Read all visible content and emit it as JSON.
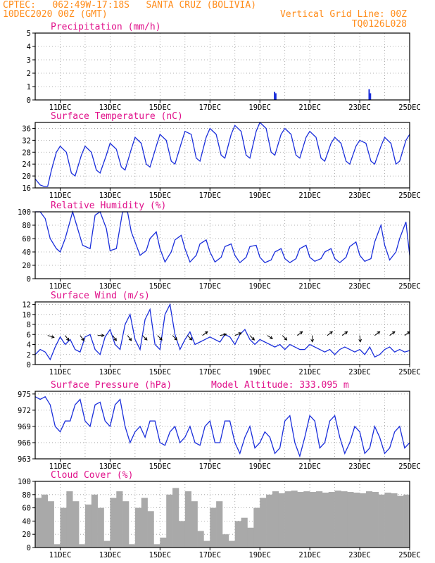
{
  "header": {
    "line1": "CPTEC:   062:49W-17:18S   SANTA CRUZ (BOLIVIA)",
    "line2": "10DEC2020 00Z (GMT)",
    "right1": "Vertical Grid Line: 00Z",
    "right2": "TQ0126L028"
  },
  "colors": {
    "header": "#ff8c1a",
    "title": "#e0108a",
    "series": "#1a2edb",
    "bar": "#1a2edb",
    "cloud": "#a9a9a9",
    "arrow": "#000000"
  },
  "chart_data": [
    {
      "type": "bar",
      "title": "Precipitation (mm/h)",
      "xlabel": "",
      "ylabel": "",
      "xlim": [
        0,
        15
      ],
      "ylim": [
        0,
        5
      ],
      "yticks": [
        0,
        1,
        2,
        3,
        4,
        5
      ],
      "xticks": [
        1,
        3,
        5,
        7,
        9,
        11,
        13,
        15
      ],
      "xticklabels": [
        "11DEC",
        "13DEC",
        "15DEC",
        "17DEC",
        "19DEC",
        "21DEC",
        "23DEC",
        "25DEC"
      ],
      "grid": true,
      "points": [
        [
          9.56,
          0.6
        ],
        [
          9.61,
          0.5
        ],
        [
          13.35,
          0.8
        ],
        [
          13.4,
          0.5
        ]
      ]
    },
    {
      "type": "line",
      "title": "Surface Temperature (nC)",
      "xlim": [
        0,
        15
      ],
      "ylim": [
        16,
        38
      ],
      "yticks": [
        16,
        20,
        24,
        28,
        32,
        36
      ],
      "xticks": [
        1,
        3,
        5,
        7,
        9,
        11,
        13,
        15
      ],
      "xticklabels": [
        "11DEC",
        "13DEC",
        "15DEC",
        "17DEC",
        "19DEC",
        "21DEC",
        "23DEC",
        "25DEC"
      ],
      "grid": true,
      "x": [
        0,
        0.1,
        0.2,
        0.35,
        0.5,
        0.65,
        0.85,
        1.0,
        1.25,
        1.45,
        1.6,
        1.85,
        2.0,
        2.25,
        2.45,
        2.6,
        2.85,
        3.0,
        3.25,
        3.45,
        3.6,
        3.85,
        4.0,
        4.25,
        4.45,
        4.6,
        4.85,
        5.0,
        5.25,
        5.45,
        5.6,
        5.85,
        6.0,
        6.25,
        6.45,
        6.6,
        6.85,
        7.0,
        7.25,
        7.45,
        7.6,
        7.85,
        8.0,
        8.25,
        8.45,
        8.6,
        8.85,
        9.0,
        9.25,
        9.45,
        9.6,
        9.85,
        10.0,
        10.25,
        10.45,
        10.6,
        10.85,
        11.0,
        11.25,
        11.45,
        11.6,
        11.85,
        12.0,
        12.25,
        12.45,
        12.6,
        12.85,
        13.0,
        13.25,
        13.45,
        13.6,
        13.85,
        14.0,
        14.25,
        14.45,
        14.6,
        14.85,
        15.0
      ],
      "y": [
        19,
        18,
        17,
        16.5,
        16.5,
        22,
        28,
        30,
        28,
        21,
        20,
        27,
        30,
        28,
        22,
        21,
        27,
        31,
        29,
        23,
        22,
        29,
        33,
        31,
        24,
        23,
        30,
        34,
        32,
        25,
        24,
        31,
        35,
        34,
        26,
        25,
        33,
        36,
        34,
        27,
        26,
        34,
        37,
        35,
        27,
        26,
        35,
        38,
        36,
        28,
        27,
        34,
        36,
        34,
        27,
        26,
        33,
        35,
        33,
        26,
        25,
        31,
        33,
        31,
        25,
        24,
        30,
        32,
        31,
        25,
        24,
        30,
        33,
        31,
        24,
        25,
        32,
        34
      ],
      "series": [
        {
          "values_ref": "y"
        }
      ]
    },
    {
      "type": "line",
      "title": "Relative Humidity (%)",
      "xlim": [
        0,
        15
      ],
      "ylim": [
        0,
        100
      ],
      "yticks": [
        0,
        20,
        40,
        60,
        80,
        100
      ],
      "xticks": [
        1,
        3,
        5,
        7,
        9,
        11,
        13,
        15
      ],
      "xticklabels": [
        "11DEC",
        "13DEC",
        "15DEC",
        "17DEC",
        "19DEC",
        "21DEC",
        "23DEC",
        "25DEC"
      ],
      "grid": true,
      "x": [
        0,
        0.2,
        0.4,
        0.6,
        0.85,
        1.0,
        1.2,
        1.5,
        1.7,
        1.9,
        2.2,
        2.4,
        2.6,
        2.85,
        3.0,
        3.25,
        3.5,
        3.7,
        3.85,
        4.2,
        4.45,
        4.6,
        4.85,
        5.0,
        5.2,
        5.45,
        5.6,
        5.85,
        6.0,
        6.2,
        6.45,
        6.6,
        6.85,
        7.0,
        7.2,
        7.45,
        7.6,
        7.85,
        8.0,
        8.2,
        8.45,
        8.6,
        8.85,
        9.0,
        9.2,
        9.45,
        9.6,
        9.85,
        10.0,
        10.2,
        10.45,
        10.6,
        10.85,
        11.0,
        11.2,
        11.45,
        11.6,
        11.85,
        12.0,
        12.2,
        12.45,
        12.6,
        12.85,
        13.0,
        13.2,
        13.45,
        13.6,
        13.85,
        14.0,
        14.2,
        14.45,
        14.6,
        14.85,
        15.0
      ],
      "y": [
        100,
        100,
        90,
        60,
        45,
        40,
        60,
        100,
        75,
        50,
        45,
        95,
        100,
        75,
        42,
        45,
        100,
        100,
        70,
        35,
        42,
        60,
        70,
        45,
        25,
        40,
        58,
        65,
        45,
        25,
        35,
        52,
        58,
        40,
        25,
        32,
        48,
        52,
        35,
        24,
        32,
        48,
        50,
        32,
        24,
        28,
        40,
        45,
        30,
        24,
        30,
        45,
        50,
        32,
        26,
        30,
        40,
        45,
        30,
        24,
        32,
        48,
        55,
        35,
        26,
        30,
        55,
        80,
        50,
        28,
        40,
        60,
        85,
        35
      ]
    },
    {
      "type": "line",
      "title": "Surface Wind (m/s)",
      "xlim": [
        0,
        15
      ],
      "ylim": [
        0,
        12.5
      ],
      "yticks": [
        0,
        2,
        4,
        6,
        8,
        10,
        12
      ],
      "xticks": [
        1,
        3,
        5,
        7,
        9,
        11,
        13,
        15
      ],
      "xticklabels": [
        "11DEC",
        "13DEC",
        "15DEC",
        "17DEC",
        "19DEC",
        "21DEC",
        "23DEC",
        "25DEC"
      ],
      "grid": true,
      "x": [
        0,
        0.2,
        0.4,
        0.6,
        0.8,
        1.0,
        1.2,
        1.4,
        1.6,
        1.8,
        2.0,
        2.2,
        2.4,
        2.6,
        2.8,
        3.0,
        3.2,
        3.4,
        3.6,
        3.8,
        4.0,
        4.2,
        4.4,
        4.6,
        4.8,
        5.0,
        5.2,
        5.4,
        5.6,
        5.8,
        6.0,
        6.2,
        6.4,
        6.6,
        6.8,
        7.0,
        7.2,
        7.4,
        7.6,
        7.8,
        8.0,
        8.2,
        8.4,
        8.6,
        8.8,
        9.0,
        9.2,
        9.4,
        9.6,
        9.8,
        10.0,
        10.2,
        10.4,
        10.6,
        10.8,
        11.0,
        11.2,
        11.4,
        11.6,
        11.8,
        12.0,
        12.2,
        12.4,
        12.6,
        12.8,
        13.0,
        13.2,
        13.4,
        13.6,
        13.8,
        14.0,
        14.2,
        14.4,
        14.6,
        14.8,
        15.0
      ],
      "y": [
        2,
        3,
        2.5,
        1,
        3.5,
        5.5,
        4,
        5,
        3,
        2.5,
        5.5,
        6,
        3,
        2,
        5.5,
        7,
        4,
        3,
        8,
        10,
        5,
        3,
        9,
        11,
        4,
        3,
        10,
        12,
        6,
        3,
        5,
        6.5,
        4,
        4.5,
        5,
        5.5,
        5,
        4.5,
        6,
        5.5,
        4,
        6,
        7,
        5,
        4,
        5,
        4.5,
        4,
        3.5,
        4,
        3,
        4,
        3.5,
        3,
        3,
        4,
        3.5,
        3,
        2.5,
        3,
        2,
        3,
        3.5,
        3,
        2.5,
        3,
        2,
        3.5,
        1.5,
        2,
        3,
        3.5,
        2.5,
        3,
        2.5,
        2.8
      ],
      "arrows_x": [
        0.5,
        1.2,
        1.8,
        2.5,
        3.1,
        3.7,
        4.3,
        4.9,
        5.5,
        6.1,
        6.7,
        7.4,
        8.0,
        8.6,
        9.3,
        9.9,
        10.5,
        11.1,
        11.7,
        12.3,
        13.0,
        13.6,
        14.2,
        14.8
      ],
      "arrows_dir": [
        [
          1,
          -0.3
        ],
        [
          0.6,
          -0.8
        ],
        [
          0.6,
          -0.8
        ],
        [
          1,
          0
        ],
        [
          0.6,
          -0.8
        ],
        [
          0.6,
          -0.8
        ],
        [
          0.7,
          -0.7
        ],
        [
          0.7,
          -0.7
        ],
        [
          0.7,
          -0.7
        ],
        [
          0.7,
          -0.7
        ],
        [
          0.8,
          0.6
        ],
        [
          1,
          0.2
        ],
        [
          1,
          0.4
        ],
        [
          0.7,
          -0.7
        ],
        [
          0.8,
          -0.5
        ],
        [
          0.7,
          -0.7
        ],
        [
          0.8,
          0.6
        ],
        [
          0,
          -1
        ],
        [
          0.8,
          0.6
        ],
        [
          0.8,
          0.6
        ],
        [
          0.1,
          -1
        ],
        [
          0.8,
          0.6
        ],
        [
          0.8,
          0.6
        ],
        [
          0.8,
          0.6
        ]
      ],
      "arrow_y": 5.8
    },
    {
      "type": "line",
      "title": "Surface Pressure (hPa)",
      "subtitle": "Model Altitude: 333.095 m",
      "xlim": [
        0,
        15
      ],
      "ylim": [
        963,
        975.5
      ],
      "yticks": [
        963,
        966,
        969,
        972,
        975
      ],
      "xticks": [
        1,
        3,
        5,
        7,
        9,
        11,
        13,
        15
      ],
      "xticklabels": [
        "11DEC",
        "13DEC",
        "15DEC",
        "17DEC",
        "19DEC",
        "21DEC",
        "23DEC",
        "25DEC"
      ],
      "grid": true,
      "x": [
        0,
        0.2,
        0.4,
        0.6,
        0.8,
        1.0,
        1.2,
        1.4,
        1.6,
        1.8,
        2.0,
        2.2,
        2.4,
        2.6,
        2.8,
        3.0,
        3.2,
        3.4,
        3.6,
        3.8,
        4.0,
        4.2,
        4.4,
        4.6,
        4.8,
        5.0,
        5.2,
        5.4,
        5.6,
        5.8,
        6.0,
        6.2,
        6.4,
        6.6,
        6.8,
        7.0,
        7.2,
        7.4,
        7.6,
        7.8,
        8.0,
        8.2,
        8.4,
        8.6,
        8.8,
        9.0,
        9.2,
        9.4,
        9.6,
        9.8,
        10.0,
        10.2,
        10.4,
        10.6,
        10.8,
        11.0,
        11.2,
        11.4,
        11.6,
        11.8,
        12.0,
        12.2,
        12.4,
        12.6,
        12.8,
        13.0,
        13.2,
        13.4,
        13.6,
        13.8,
        14.0,
        14.2,
        14.4,
        14.6,
        14.8,
        15.0
      ],
      "y": [
        974.5,
        974,
        974.5,
        973,
        969,
        968,
        970,
        970,
        973,
        974,
        970,
        969,
        973,
        973.5,
        970,
        969,
        973,
        974,
        969,
        966,
        968,
        969,
        967,
        970,
        970,
        966,
        965.5,
        968,
        969,
        966,
        967,
        969,
        966,
        965.5,
        969,
        970,
        966,
        966,
        970,
        970,
        966,
        964,
        967,
        969,
        965,
        966,
        968,
        967,
        964,
        965,
        970,
        971,
        966,
        963.5,
        967,
        971,
        970,
        965,
        966,
        970,
        971,
        967,
        964,
        966,
        969,
        968,
        964,
        965,
        969,
        967,
        964,
        965,
        968,
        969,
        965,
        966
      ]
    },
    {
      "type": "bar",
      "title": "Cloud Cover (%)",
      "xlim": [
        0,
        15
      ],
      "ylim": [
        0,
        100
      ],
      "yticks": [
        0,
        20,
        40,
        60,
        80,
        100
      ],
      "xticks": [
        1,
        3,
        5,
        7,
        9,
        11,
        13,
        15
      ],
      "xticklabels": [
        "11DEC",
        "13DEC",
        "15DEC",
        "17DEC",
        "19DEC",
        "21DEC",
        "23DEC",
        "25DEC"
      ],
      "grid": true,
      "x": [
        0,
        0.25,
        0.5,
        0.75,
        1.0,
        1.25,
        1.5,
        1.75,
        2.0,
        2.25,
        2.5,
        2.75,
        3.0,
        3.25,
        3.5,
        3.75,
        4.0,
        4.25,
        4.5,
        4.75,
        5.0,
        5.25,
        5.5,
        5.75,
        6.0,
        6.25,
        6.5,
        6.75,
        7.0,
        7.25,
        7.5,
        7.75,
        8.0,
        8.25,
        8.5,
        8.75,
        9.0,
        9.25,
        9.5,
        9.75,
        10.0,
        10.25,
        10.5,
        10.75,
        11.0,
        11.25,
        11.5,
        11.75,
        12.0,
        12.25,
        12.5,
        12.75,
        13.0,
        13.25,
        13.5,
        13.75,
        14.0,
        14.25,
        14.5,
        14.75
      ],
      "y": [
        75,
        80,
        70,
        5,
        60,
        85,
        70,
        5,
        65,
        80,
        60,
        10,
        75,
        85,
        70,
        5,
        60,
        75,
        55,
        5,
        15,
        80,
        90,
        40,
        85,
        70,
        25,
        10,
        60,
        70,
        20,
        10,
        40,
        45,
        30,
        60,
        75,
        80,
        85,
        82,
        85,
        86,
        84,
        85,
        84,
        85,
        83,
        84,
        86,
        85,
        84,
        83,
        82,
        85,
        84,
        80,
        83,
        82,
        78,
        80
      ]
    }
  ]
}
